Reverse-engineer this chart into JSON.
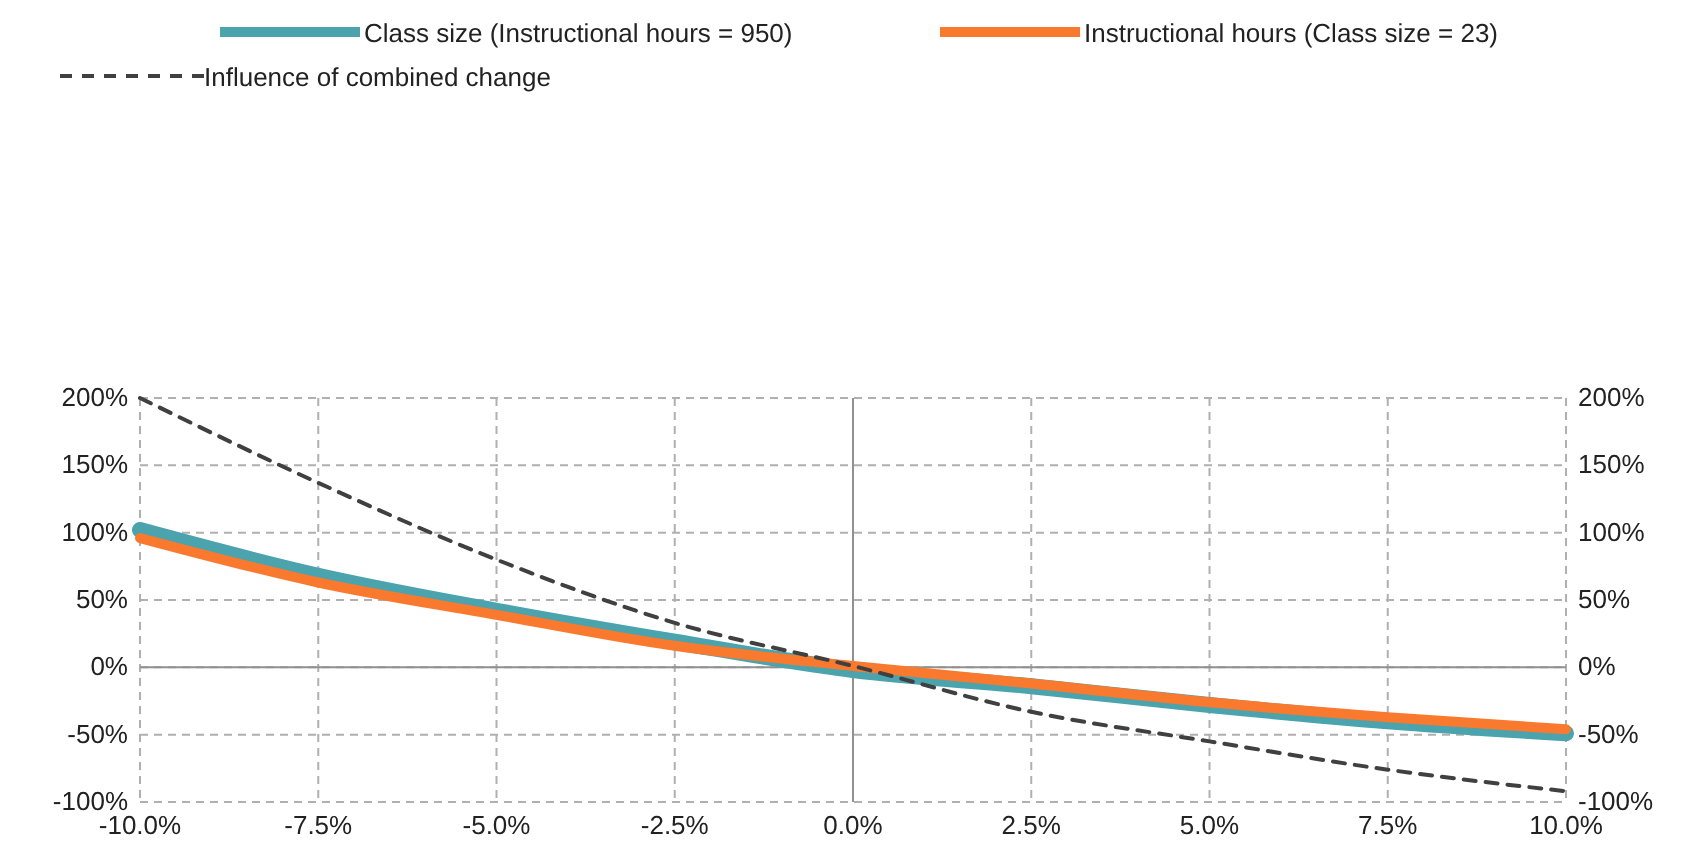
{
  "chart_data": {
    "type": "line",
    "x": [
      -10,
      -7.5,
      -5,
      -2.5,
      0,
      2.5,
      5,
      7.5,
      10
    ],
    "series": [
      {
        "name": "Class size (Instructional hours = 950)",
        "color": "#4aa3ad",
        "values": [
          102,
          68,
          42,
          19,
          -2,
          -14,
          -28,
          -40,
          -49
        ]
      },
      {
        "name": "Instructional hours (Class size = 23)",
        "color": "#f97a2e",
        "values": [
          96,
          63,
          39,
          16,
          1,
          -12,
          -26,
          -37,
          -46
        ]
      },
      {
        "name": "Influence of combined change",
        "color": "#404040",
        "line_style": "dashed",
        "values": [
          200,
          137,
          80,
          33,
          1,
          -33,
          -55,
          -76,
          -92
        ]
      }
    ],
    "xlim": [
      -10,
      10
    ],
    "xticks": [
      {
        "value": -10,
        "label": "-10.0%"
      },
      {
        "value": -7.5,
        "label": "-7.5%"
      },
      {
        "value": -5,
        "label": "-5.0%"
      },
      {
        "value": -2.5,
        "label": "-2.5%"
      },
      {
        "value": 0,
        "label": "0.0%"
      },
      {
        "value": 2.5,
        "label": "2.5%"
      },
      {
        "value": 5,
        "label": "5.0%"
      },
      {
        "value": 7.5,
        "label": "7.5%"
      },
      {
        "value": 10,
        "label": "10.0%"
      }
    ],
    "ylim": [
      -100,
      200
    ],
    "yticks": [
      {
        "value": -100,
        "label": "-100%"
      },
      {
        "value": -50,
        "label": "-50%"
      },
      {
        "value": 0,
        "label": "0%"
      },
      {
        "value": 50,
        "label": "50%"
      },
      {
        "value": 100,
        "label": "100%"
      },
      {
        "value": 150,
        "label": "150%"
      },
      {
        "value": 200,
        "label": "200%"
      }
    ],
    "y2lim": [
      -100,
      200
    ],
    "y2ticks": [
      {
        "value": -100,
        "label": "-100%"
      },
      {
        "value": -50,
        "label": "-50%"
      },
      {
        "value": 0,
        "label": "0%"
      },
      {
        "value": 50,
        "label": "50%"
      },
      {
        "value": 100,
        "label": "100%"
      },
      {
        "value": 150,
        "label": "150%"
      },
      {
        "value": 200,
        "label": "200%"
      }
    ],
    "grid": true,
    "legend": "top",
    "marker": "none"
  }
}
